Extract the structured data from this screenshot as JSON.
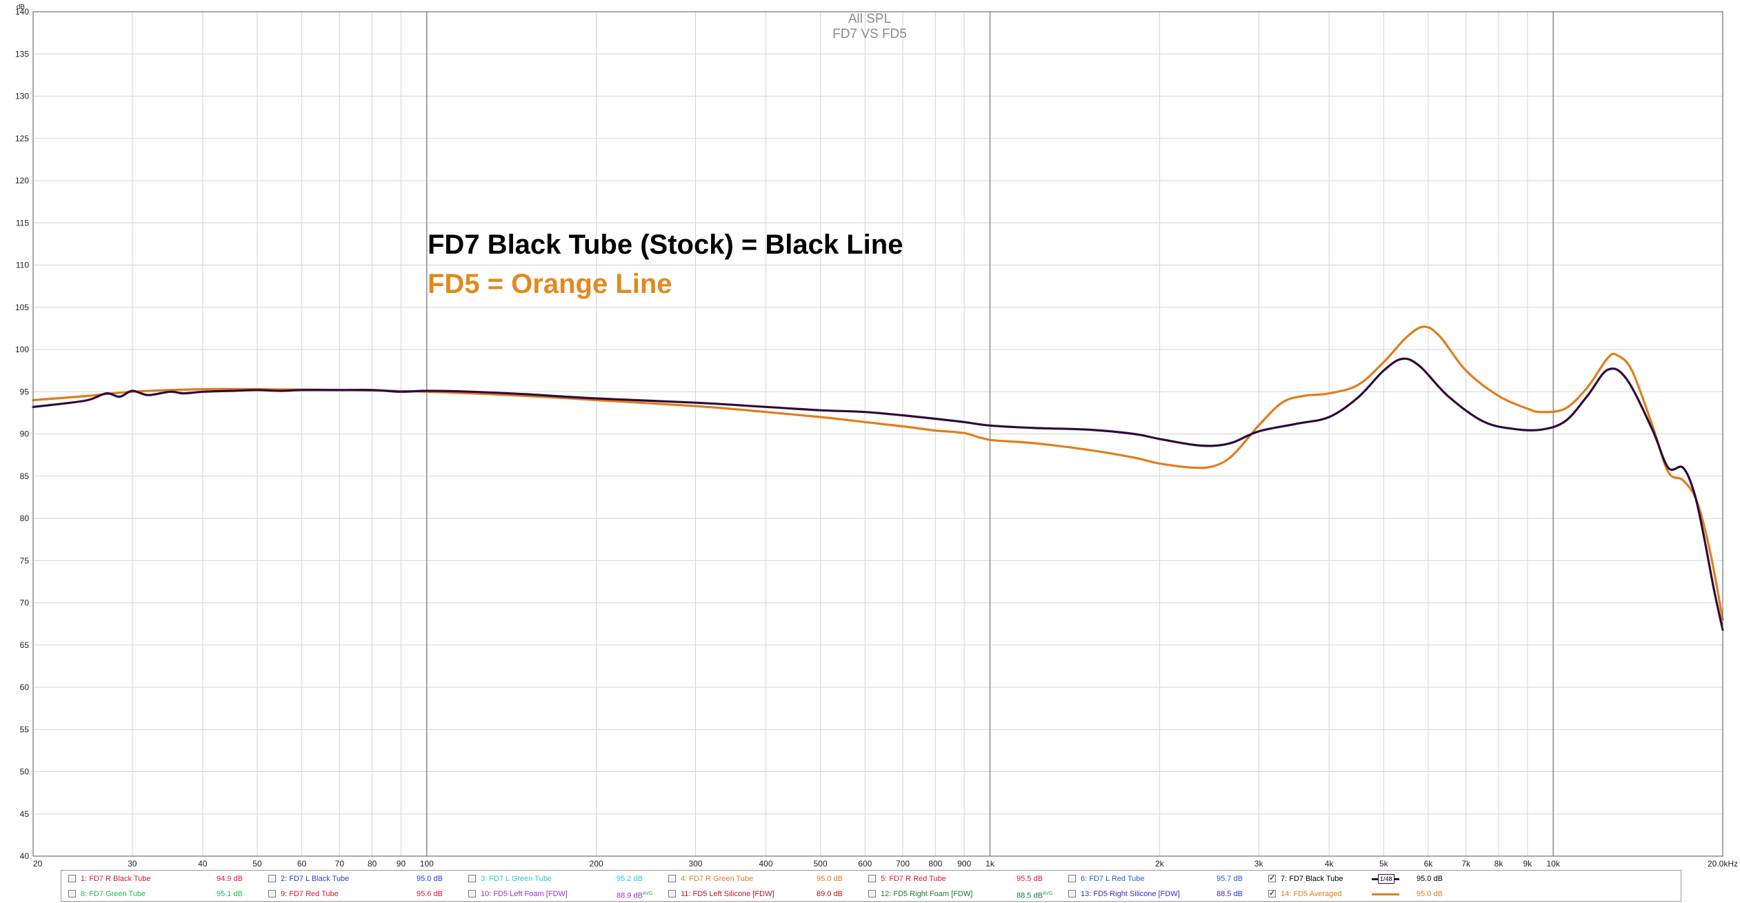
{
  "chart_data": {
    "type": "line",
    "title": "All SPL",
    "subtitle": "FD7 VS FD5",
    "unit_label": "dB",
    "xscale": "log",
    "xlim": [
      20,
      20000
    ],
    "ylim": [
      40,
      140
    ],
    "grid": true,
    "y_ticks": [
      140,
      135,
      130,
      125,
      120,
      115,
      110,
      105,
      100,
      95,
      90,
      85,
      80,
      75,
      70,
      65,
      60,
      55,
      50,
      45,
      40
    ],
    "x_ticks": [
      {
        "value": 20,
        "label": "20"
      },
      {
        "value": 30,
        "label": "30"
      },
      {
        "value": 40,
        "label": "40"
      },
      {
        "value": 50,
        "label": "50"
      },
      {
        "value": 60,
        "label": "60"
      },
      {
        "value": 70,
        "label": "70"
      },
      {
        "value": 80,
        "label": "80"
      },
      {
        "value": 90,
        "label": "90"
      },
      {
        "value": 100,
        "label": "100"
      },
      {
        "value": 200,
        "label": "200"
      },
      {
        "value": 300,
        "label": "300"
      },
      {
        "value": 400,
        "label": "400"
      },
      {
        "value": 500,
        "label": "500"
      },
      {
        "value": 600,
        "label": "600"
      },
      {
        "value": 700,
        "label": "700"
      },
      {
        "value": 800,
        "label": "800"
      },
      {
        "value": 900,
        "label": "900"
      },
      {
        "value": 1000,
        "label": "1k"
      },
      {
        "value": 2000,
        "label": "2k"
      },
      {
        "value": 3000,
        "label": "3k"
      },
      {
        "value": 4000,
        "label": "4k"
      },
      {
        "value": 5000,
        "label": "5k"
      },
      {
        "value": 6000,
        "label": "6k"
      },
      {
        "value": 7000,
        "label": "7k"
      },
      {
        "value": 8000,
        "label": "8k"
      },
      {
        "value": 9000,
        "label": "9k"
      },
      {
        "value": 10000,
        "label": "10k"
      },
      {
        "value": 20000,
        "label": "20.0kHz"
      }
    ],
    "annotations": [
      {
        "text": "FD7 Black Tube (Stock) = Black Line",
        "color": "#000000"
      },
      {
        "text": "FD5 = Orange Line",
        "color": "#e08a1e"
      }
    ],
    "series": [
      {
        "name": "7: FD7 Black Tube",
        "color": "#2d0a3d",
        "points": [
          [
            20,
            93.2
          ],
          [
            22,
            93.5
          ],
          [
            25,
            94.0
          ],
          [
            27,
            94.8
          ],
          [
            28.5,
            94.4
          ],
          [
            30,
            95.1
          ],
          [
            32,
            94.6
          ],
          [
            35,
            95.0
          ],
          [
            37,
            94.8
          ],
          [
            40,
            95.0
          ],
          [
            45,
            95.1
          ],
          [
            50,
            95.2
          ],
          [
            55,
            95.1
          ],
          [
            60,
            95.2
          ],
          [
            70,
            95.2
          ],
          [
            80,
            95.2
          ],
          [
            90,
            95.0
          ],
          [
            100,
            95.1
          ],
          [
            120,
            95.0
          ],
          [
            150,
            94.7
          ],
          [
            200,
            94.2
          ],
          [
            300,
            93.7
          ],
          [
            400,
            93.2
          ],
          [
            500,
            92.8
          ],
          [
            600,
            92.6
          ],
          [
            700,
            92.2
          ],
          [
            800,
            91.8
          ],
          [
            900,
            91.4
          ],
          [
            1000,
            91.0
          ],
          [
            1200,
            90.7
          ],
          [
            1500,
            90.5
          ],
          [
            1800,
            90.0
          ],
          [
            2000,
            89.4
          ],
          [
            2300,
            88.7
          ],
          [
            2500,
            88.6
          ],
          [
            2700,
            89.0
          ],
          [
            3000,
            90.3
          ],
          [
            3500,
            91.2
          ],
          [
            4000,
            92.0
          ],
          [
            4500,
            94.3
          ],
          [
            5000,
            97.5
          ],
          [
            5400,
            98.9
          ],
          [
            5800,
            98.0
          ],
          [
            6500,
            94.5
          ],
          [
            7500,
            91.5
          ],
          [
            8500,
            90.6
          ],
          [
            9500,
            90.5
          ],
          [
            10500,
            91.5
          ],
          [
            11500,
            94.5
          ],
          [
            12500,
            97.6
          ],
          [
            13500,
            96.5
          ],
          [
            15000,
            90.5
          ],
          [
            16000,
            86.0
          ],
          [
            17000,
            86.0
          ],
          [
            17800,
            83.0
          ],
          [
            18500,
            78.0
          ],
          [
            19300,
            71.5
          ],
          [
            20000,
            66.8
          ]
        ]
      },
      {
        "name": "14: FD5 Averaged",
        "color": "#e07d1a",
        "points": [
          [
            20,
            94.0
          ],
          [
            25,
            94.5
          ],
          [
            30,
            95.0
          ],
          [
            40,
            95.3
          ],
          [
            50,
            95.3
          ],
          [
            70,
            95.2
          ],
          [
            100,
            95.0
          ],
          [
            150,
            94.5
          ],
          [
            200,
            94.0
          ],
          [
            300,
            93.3
          ],
          [
            400,
            92.6
          ],
          [
            500,
            92.0
          ],
          [
            600,
            91.4
          ],
          [
            700,
            90.9
          ],
          [
            800,
            90.4
          ],
          [
            900,
            90.1
          ],
          [
            1000,
            89.3
          ],
          [
            1200,
            88.9
          ],
          [
            1500,
            88.1
          ],
          [
            1800,
            87.2
          ],
          [
            2000,
            86.5
          ],
          [
            2300,
            86.0
          ],
          [
            2500,
            86.2
          ],
          [
            2700,
            87.5
          ],
          [
            3000,
            91.0
          ],
          [
            3300,
            93.7
          ],
          [
            3600,
            94.5
          ],
          [
            4000,
            94.8
          ],
          [
            4500,
            95.8
          ],
          [
            5000,
            98.5
          ],
          [
            5500,
            101.5
          ],
          [
            5900,
            102.7
          ],
          [
            6300,
            101.5
          ],
          [
            7000,
            97.5
          ],
          [
            8000,
            94.5
          ],
          [
            9000,
            93.0
          ],
          [
            9500,
            92.6
          ],
          [
            10500,
            93.0
          ],
          [
            11500,
            95.5
          ],
          [
            12500,
            99.0
          ],
          [
            13000,
            99.3
          ],
          [
            13800,
            97.5
          ],
          [
            15000,
            91.0
          ],
          [
            16000,
            85.5
          ],
          [
            17000,
            84.5
          ],
          [
            18000,
            82.0
          ],
          [
            19000,
            76.0
          ],
          [
            20000,
            68.0
          ]
        ]
      }
    ],
    "legend": [
      {
        "name": "1: FD7 R Black Tube",
        "value": "94.9 dB",
        "checked": false,
        "color": "#e0152d"
      },
      {
        "name": "2: FD7 L Black Tube",
        "value": "95.0 dB",
        "checked": false,
        "color": "#1f3fe0"
      },
      {
        "name": "3: FD7 L Green Tube",
        "value": "95.2 dB",
        "checked": false,
        "color": "#1fd0d0"
      },
      {
        "name": "4: FD7 R Green Tube",
        "value": "95.0 dB",
        "checked": false,
        "color": "#e07d1a"
      },
      {
        "name": "5: FD7 R Red Tube",
        "value": "95.5 dB",
        "checked": false,
        "color": "#e0152d"
      },
      {
        "name": "6: FD7 L Red Tube",
        "value": "95.7 dB",
        "checked": false,
        "color": "#1f5fe0"
      },
      {
        "name": "7: FD7 Black Tube",
        "value": "95.0 dB",
        "checked": true,
        "color": "#000000",
        "swatch_color": "#2d0a3d",
        "swatch_text": "1/48"
      },
      {
        "name": "8: FD7 Green Tube",
        "value": "95.1 dB",
        "checked": false,
        "color": "#1fc050"
      },
      {
        "name": "9: FD7 Red Tube",
        "value": "95.6 dB",
        "checked": false,
        "color": "#e0152d"
      },
      {
        "name": "10: FD5 Left Foam [FDW]",
        "value": "88.9 dB",
        "avg": "AVG",
        "checked": false,
        "color": "#9a2fd0"
      },
      {
        "name": "11: FD5 Left Silicone [FDW]",
        "value": "89.0 dB",
        "checked": false,
        "color": "#c01020"
      },
      {
        "name": "12: FD5 Right Foam [FDW]",
        "value": "88.5 dB",
        "avg": "AVG",
        "checked": false,
        "color": "#1a7a2a"
      },
      {
        "name": "13: FD5 Right Silicone [FDW]",
        "value": "88.5 dB",
        "checked": false,
        "color": "#3030c0"
      },
      {
        "name": "14: FD5 Averaged",
        "value": "95.0 dB",
        "checked": true,
        "color": "#e07d1a",
        "swatch_color": "#e07d1a"
      }
    ]
  }
}
